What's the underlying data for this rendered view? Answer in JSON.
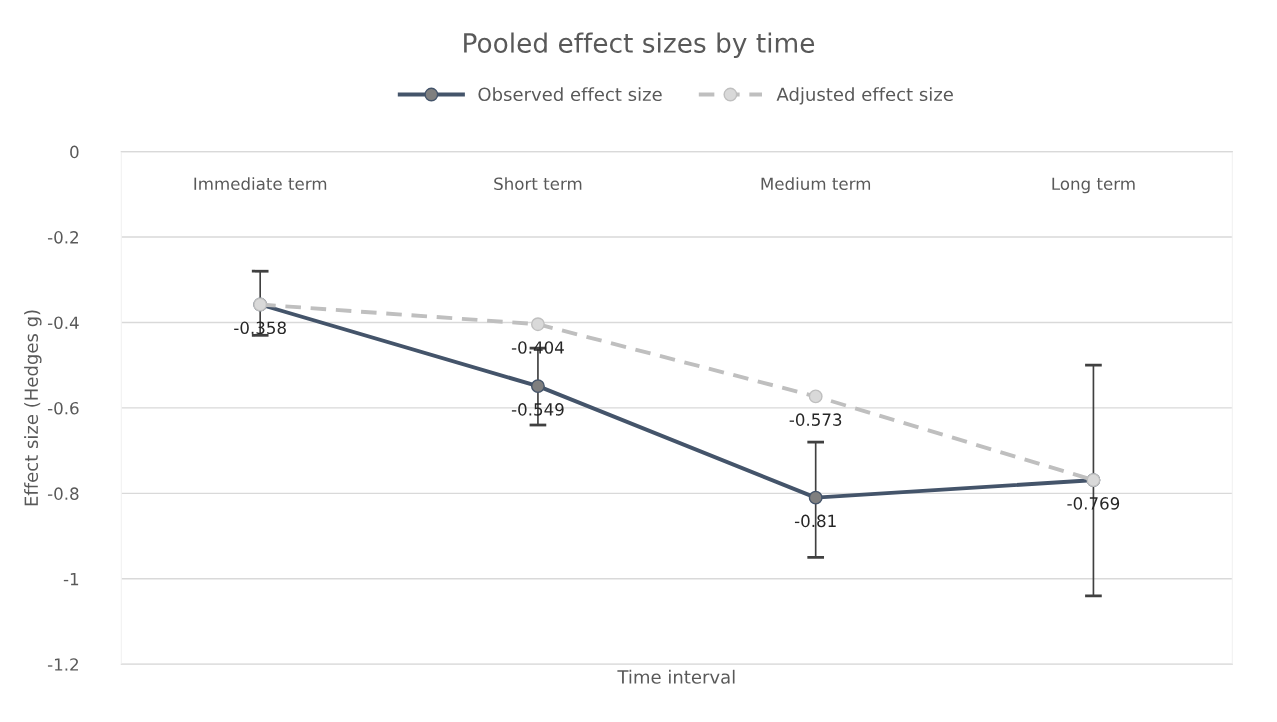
{
  "chart_data": {
    "type": "line",
    "title": "Pooled effect sizes by time",
    "xlabel": "Time interval",
    "ylabel": "Effect size (Hedges g)",
    "categories": [
      "Immediate term",
      "Short term",
      "Medium term",
      "Long term"
    ],
    "series": [
      {
        "name": "Observed effect size",
        "color": "#44546a",
        "values": [
          -0.358,
          -0.549,
          -0.81,
          -0.769
        ],
        "value_labels": [
          "-0.358",
          "-0.549",
          "-0.81",
          "-0.769"
        ],
        "errors": [
          [
            -0.43,
            -0.28
          ],
          [
            -0.64,
            -0.46
          ],
          [
            -0.95,
            -0.68
          ],
          [
            -1.04,
            -0.5
          ]
        ],
        "line_style": "solid"
      },
      {
        "name": "Adjusted effect size",
        "color": "#bfbfbf",
        "values": [
          -0.358,
          -0.404,
          -0.573,
          -0.769
        ],
        "value_labels": [
          null,
          "-0.404",
          "-0.573",
          null
        ],
        "line_style": "dashed"
      }
    ],
    "ylim": [
      -1.2,
      0
    ],
    "yticks": [
      0,
      {
        "value": -0.2,
        "label": "-0.2"
      },
      {
        "value": -0.4,
        "label": "-0.4"
      },
      {
        "value": -0.6,
        "label": "-0.6"
      },
      {
        "value": -0.8,
        "label": "-0.8"
      },
      {
        "value": -1,
        "label": "-1"
      },
      {
        "value": -1.2,
        "label": "-1.2"
      }
    ],
    "grid": "y",
    "legend": "top",
    "marker": "circle"
  }
}
